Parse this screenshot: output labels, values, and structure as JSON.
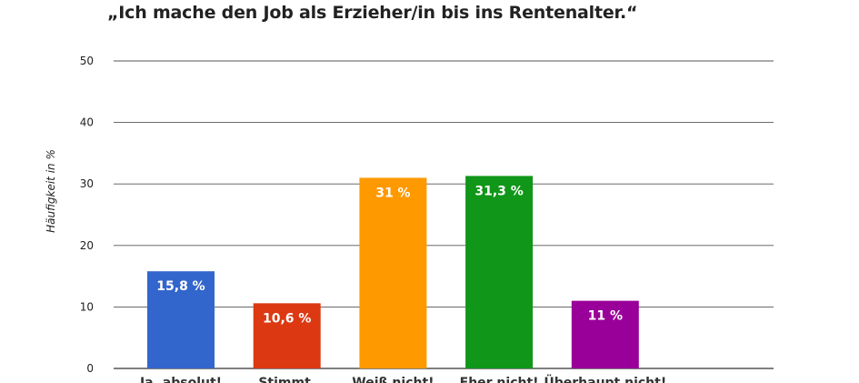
{
  "chart_data": {
    "type": "bar",
    "title": "„Ich mache den Job als Erzieher/in bis ins Rentenalter.“",
    "ylabel": "Häufigkeit in %",
    "xlabel": "",
    "ylim": [
      0,
      50
    ],
    "yticks": [
      0,
      10,
      20,
      30,
      40,
      50
    ],
    "grid": true,
    "categories": [
      "Ja, absolut!",
      "Stimmt.",
      "Weiß nicht!",
      "Eher nicht!",
      "Überhaupt nicht!"
    ],
    "values": [
      15.8,
      10.6,
      31,
      31.3,
      11
    ],
    "value_labels": [
      "15,8 %",
      "10,6 %",
      "31 %",
      "31,3 %",
      "11 %"
    ],
    "colors": [
      "#3366cc",
      "#dc3912",
      "#ff9900",
      "#109618",
      "#990099"
    ]
  }
}
